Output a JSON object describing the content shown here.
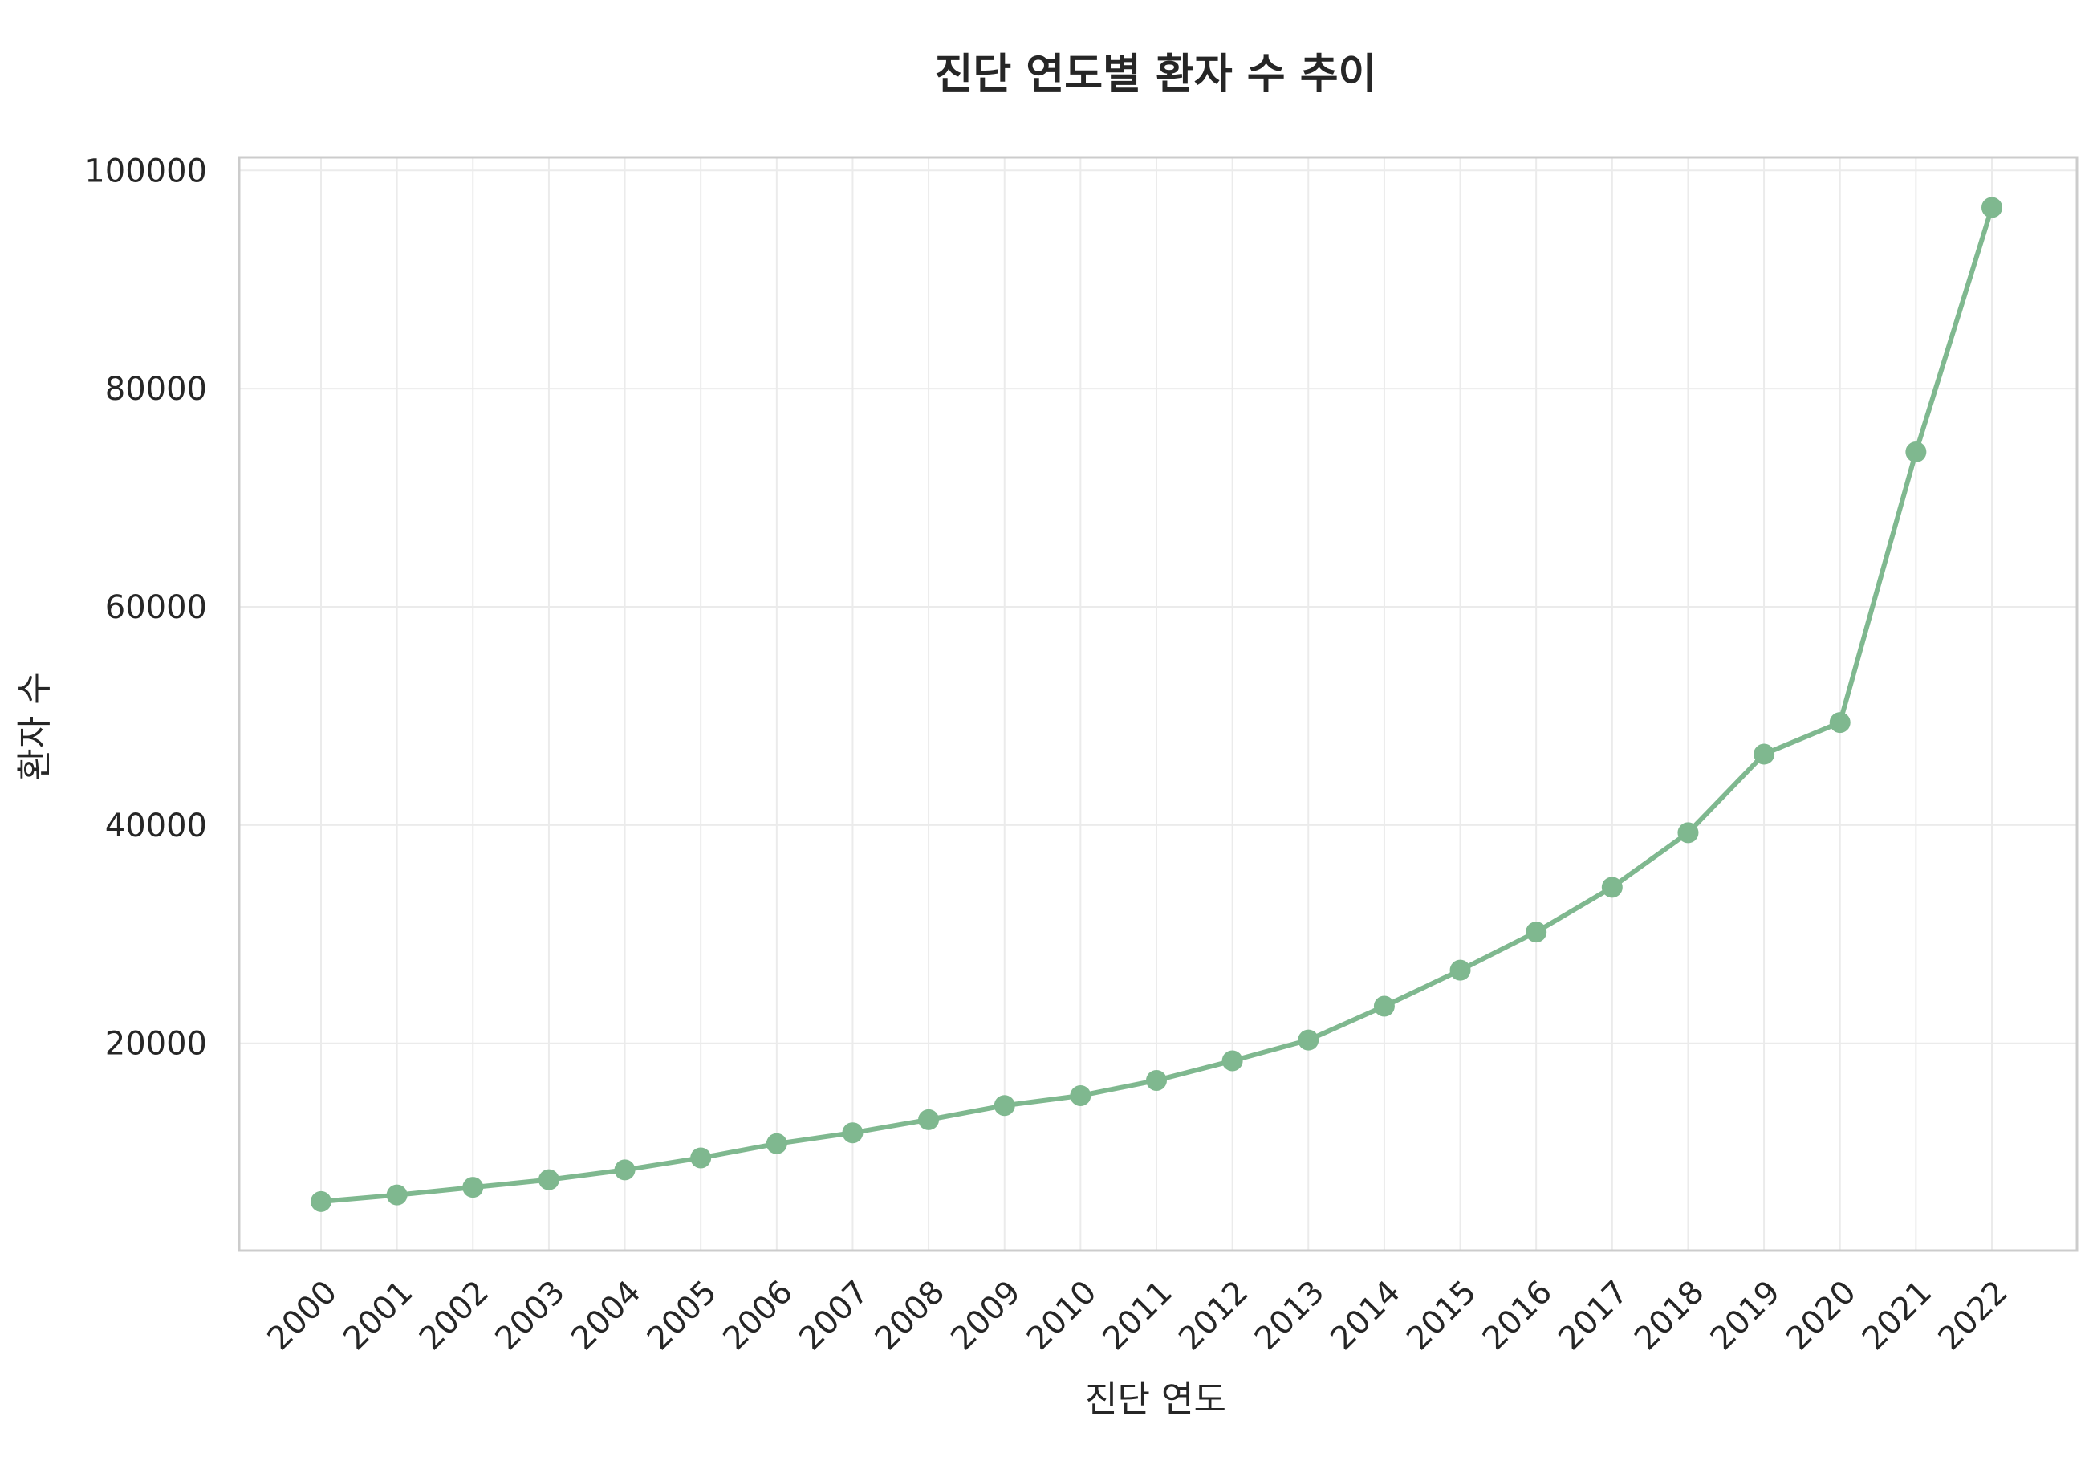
{
  "figure": {
    "suptitle": "",
    "title": "진단 연도별 환자 수 추이"
  },
  "colors": {
    "series": "#7fb88f",
    "grid": "#ebebeb",
    "frame": "#cccccc",
    "text": "#262626"
  },
  "chart_data": {
    "type": "line",
    "title": "진단 연도별 환자 수 추이",
    "xlabel": "진단 연도",
    "ylabel": "환자 수",
    "x": [
      "2000",
      "2001",
      "2002",
      "2003",
      "2004",
      "2005",
      "2006",
      "2007",
      "2008",
      "2009",
      "2010",
      "2011",
      "2012",
      "2013",
      "2014",
      "2015",
      "2016",
      "2017",
      "2018",
      "2019",
      "2020",
      "2021",
      "2022"
    ],
    "series": [
      {
        "values": [
          5500,
          6100,
          6800,
          7500,
          8400,
          9500,
          10800,
          11800,
          13000,
          14300,
          15200,
          16600,
          18400,
          20300,
          23400,
          26700,
          30200,
          34300,
          39300,
          46500,
          49400,
          74200,
          96600
        ],
        "marker": "circle"
      }
    ],
    "yticks": [
      20000,
      40000,
      60000,
      80000,
      100000
    ],
    "ylim": [
      1000,
      101200
    ],
    "grid": true,
    "legend": "none"
  }
}
